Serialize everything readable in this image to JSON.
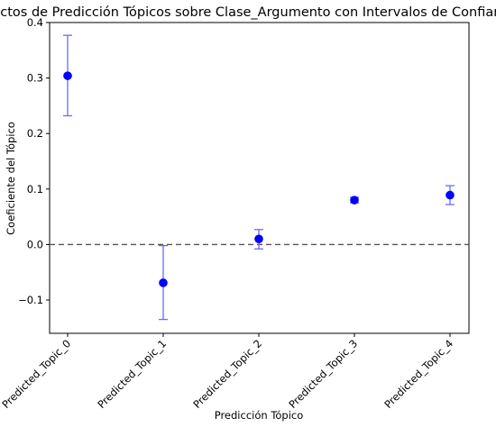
{
  "chart_data": {
    "type": "scatter",
    "title": "Efectos de Predicción Tópicos sobre Clase_Argumento con Intervalos de Confianza",
    "xlabel": "Predicción Tópico",
    "ylabel": "Coeficiente del Tópico",
    "categories": [
      "Predicted_Topic_0",
      "Predicted_Topic_1",
      "Predicted_Topic_2",
      "Predicted_Topic_3",
      "Predicted_Topic_4"
    ],
    "values": [
      0.304,
      -0.069,
      0.01,
      0.08,
      0.089
    ],
    "ci_lower": [
      0.232,
      -0.135,
      -0.008,
      0.075,
      0.072
    ],
    "ci_upper": [
      0.377,
      -0.002,
      0.027,
      0.085,
      0.106
    ],
    "ylim": [
      -0.16,
      0.4
    ],
    "yticks": [
      -0.1,
      0.0,
      0.1,
      0.2,
      0.3,
      0.4
    ],
    "ytick_labels": [
      "−0.1",
      "0.0",
      "0.1",
      "0.2",
      "0.3",
      "0.4"
    ],
    "reference_line": 0,
    "grid": false,
    "colors": {
      "marker": "#0000ff",
      "errorbar": "#6b6bf0",
      "reference_line": "#555555"
    }
  }
}
